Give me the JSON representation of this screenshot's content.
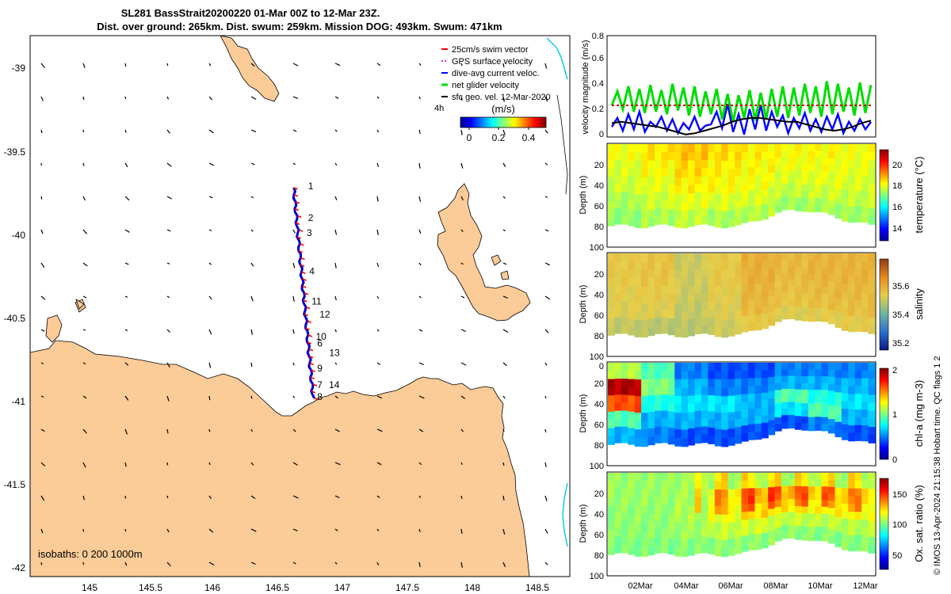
{
  "header": {
    "title_line1": "SL281 BassStrait20200220 01-Mar 00Z to 12-Mar 23Z.",
    "title_line2": "Dist. over ground: 265km. Dist. swum: 259km. Mission DOG: 493km. Swum: 471km"
  },
  "map": {
    "legend": [
      {
        "label": "25cm/s swim vector",
        "color": "#ff0000"
      },
      {
        "label": "GPS surface velocity",
        "color": "#cc33cc"
      },
      {
        "label": "dive-avg current veloc.",
        "color": "#0000ff"
      },
      {
        "label": "net glider velocity",
        "color": "#00dd00"
      },
      {
        "label": "sfc geo. vel. 12-Mar-2020",
        "color": "#000000"
      }
    ],
    "legend_note": "4h",
    "colorbar_unit": "(m/s)",
    "colorbar_ticks": [
      "0",
      "0.2",
      "0.4"
    ],
    "colorbar_range": [
      0,
      0.5
    ],
    "x_ticks": [
      "145",
      "145.5",
      "146",
      "146.5",
      "147",
      "147.5",
      "148",
      "148.5"
    ],
    "y_ticks": [
      "-39",
      "-39.5",
      "-40",
      "-40.5",
      "-41",
      "-41.5",
      "-42"
    ],
    "isobaths_label": "isobaths: 0   200  1000m",
    "land_color": "#fbcb98",
    "track_color": "#0000cc",
    "track_label_color": "#ff0000",
    "waypoints": [
      {
        "label": "1",
        "lon": 146.62,
        "lat": -39.73
      },
      {
        "label": "2",
        "lon": 146.62,
        "lat": -39.92
      },
      {
        "label": "3",
        "lon": 146.61,
        "lat": -40.01
      },
      {
        "label": "4",
        "lon": 146.63,
        "lat": -40.24
      },
      {
        "label": "11",
        "lon": 146.66,
        "lat": -40.42
      },
      {
        "label": "12",
        "lon": 146.66,
        "lat": -40.46
      },
      {
        "label": "10",
        "lon": 146.68,
        "lat": -40.63
      },
      {
        "label": "6",
        "lon": 146.69,
        "lat": -40.67
      },
      {
        "label": "13",
        "lon": 146.71,
        "lat": -40.69
      },
      {
        "label": "9",
        "lon": 146.69,
        "lat": -40.82
      },
      {
        "label": "7",
        "lon": 146.69,
        "lat": -40.92
      },
      {
        "label": "14",
        "lon": 146.72,
        "lat": -40.92
      },
      {
        "label": "8",
        "lon": 146.69,
        "lat": -40.99
      }
    ]
  },
  "chart_data": [
    {
      "type": "line",
      "title": "",
      "ylabel": "velocity magnitude (m/s)",
      "ylim": [
        0,
        0.8
      ],
      "y_ticks": [
        "0",
        "0.2",
        "0.4",
        "0.6",
        "0.8"
      ],
      "series": [
        {
          "name": "net glider velocity",
          "color": "#00dd00",
          "values": [
            0.25,
            0.36,
            0.22,
            0.4,
            0.2,
            0.38,
            0.19,
            0.41,
            0.2,
            0.37,
            0.18,
            0.42,
            0.21,
            0.39,
            0.17,
            0.4,
            0.16,
            0.36,
            0.18,
            0.38,
            0.14,
            0.34,
            0.12,
            0.33,
            0.15,
            0.37,
            0.13,
            0.35,
            0.14,
            0.38,
            0.16,
            0.4,
            0.15,
            0.39,
            0.17,
            0.42,
            0.19,
            0.4,
            0.16,
            0.44,
            0.18,
            0.42,
            0.2,
            0.39,
            0.17,
            0.43,
            0.19,
            0.41
          ]
        },
        {
          "name": "dive-avg current veloc.",
          "color": "#0000ff",
          "values": [
            0.08,
            0.15,
            0.05,
            0.18,
            0.06,
            0.2,
            0.04,
            0.12,
            0.08,
            0.16,
            0.05,
            0.14,
            0.03,
            0.11,
            0.06,
            0.16,
            0.05,
            0.09,
            0.1,
            0.2,
            0.07,
            0.26,
            0.04,
            0.18,
            0.02,
            0.22,
            0.06,
            0.25,
            0.05,
            0.2,
            0.08,
            0.17,
            0.03,
            0.15,
            0.07,
            0.19,
            0.05,
            0.14,
            0.04,
            0.16,
            0.06,
            0.18,
            0.03,
            0.12,
            0.05,
            0.14,
            0.06,
            0.12
          ]
        },
        {
          "name": "sfc geo. vel.",
          "color": "#000000",
          "values": [
            0.11,
            0.12,
            0.11,
            0.1,
            0.09,
            0.08,
            0.06,
            0.04,
            0.02,
            0.03,
            0.05,
            0.07,
            0.09,
            0.12,
            0.14,
            0.15,
            0.15,
            0.14,
            0.13,
            0.12,
            0.12,
            0.1,
            0.08,
            0.06,
            0.05,
            0.06,
            0.08,
            0.11,
            0.13
          ]
        },
        {
          "name": "25cm/s reference",
          "color": "#cc0000",
          "values": [
            0.25,
            0.25
          ]
        }
      ]
    },
    {
      "type": "heatmap",
      "variable": "temperature",
      "ylabel": "Depth (m)",
      "colorbar_label": "temperature (°C)",
      "colorbar_ticks": [
        "14",
        "16",
        "18",
        "20"
      ],
      "colorbar_range": [
        13,
        21.5
      ],
      "ylim": [
        0,
        100
      ],
      "y_ticks": [
        "20",
        "40",
        "60",
        "80",
        "100"
      ],
      "values": [
        [
          18.2,
          18.0,
          17.9,
          17.6,
          17.4
        ],
        [
          18.5,
          18.3,
          18.1,
          17.9,
          17.6
        ],
        [
          18.8,
          18.6,
          18.4,
          18.1,
          17.8
        ],
        [
          18.6,
          18.4,
          18.3,
          18.0,
          17.6
        ],
        [
          18.4,
          18.3,
          18.2,
          18.0,
          17.7
        ],
        [
          18.3,
          18.2,
          18.0,
          17.8,
          17.5
        ],
        [
          18.3,
          18.2,
          18.1,
          17.9,
          17.6
        ],
        [
          18.2,
          18.1,
          18.0,
          17.8,
          17.5
        ]
      ]
    },
    {
      "type": "heatmap",
      "variable": "salinity",
      "ylabel": "Depth (m)",
      "colorbar_label": "salinity",
      "colorbar_ticks": [
        "35.2",
        "35.4",
        "35.6"
      ],
      "colorbar_range": [
        35.1,
        35.75
      ],
      "ylim": [
        0,
        100
      ],
      "y_ticks": [
        "20",
        "40",
        "60",
        "80",
        "100"
      ],
      "values": [
        [
          35.5,
          35.5,
          35.49,
          35.48,
          35.45
        ],
        [
          35.51,
          35.51,
          35.5,
          35.48,
          35.44
        ],
        [
          35.46,
          35.46,
          35.46,
          35.45,
          35.44
        ],
        [
          35.5,
          35.5,
          35.49,
          35.48,
          35.46
        ],
        [
          35.55,
          35.55,
          35.54,
          35.53,
          35.5
        ],
        [
          35.53,
          35.53,
          35.52,
          35.51,
          35.48
        ],
        [
          35.54,
          35.54,
          35.53,
          35.52,
          35.49
        ],
        [
          35.54,
          35.54,
          35.53,
          35.52,
          35.49
        ]
      ]
    },
    {
      "type": "heatmap",
      "variable": "chl-a",
      "ylabel": "Depth (m)",
      "colorbar_label": "chl-a (mg m-3)",
      "colorbar_ticks": [
        "0",
        "1",
        "2"
      ],
      "colorbar_range": [
        0,
        2
      ],
      "ylim": [
        0,
        100
      ],
      "y_ticks": [
        "0",
        "20",
        "40",
        "60",
        "80",
        "100"
      ],
      "values": [
        [
          1.1,
          1.9,
          1.6,
          0.9,
          0.6
        ],
        [
          0.9,
          1.0,
          0.8,
          0.6,
          0.5
        ],
        [
          0.5,
          0.6,
          0.7,
          0.6,
          0.4
        ],
        [
          0.4,
          0.5,
          0.7,
          0.6,
          0.4
        ],
        [
          0.4,
          0.5,
          0.6,
          0.6,
          0.4
        ],
        [
          0.5,
          0.6,
          0.9,
          0.7,
          0.4
        ],
        [
          0.5,
          0.6,
          0.8,
          0.9,
          0.5
        ],
        [
          0.5,
          0.6,
          0.7,
          0.6,
          0.4
        ]
      ]
    },
    {
      "type": "heatmap",
      "variable": "oxygen saturation",
      "ylabel": "Depth (m)",
      "colorbar_label": "Ox. sat. ratio (%)",
      "colorbar_ticks": [
        "50",
        "100",
        "150"
      ],
      "colorbar_range": [
        25,
        175
      ],
      "ylim": [
        0,
        100
      ],
      "y_ticks": [
        "20",
        "40",
        "60",
        "80",
        "100"
      ],
      "values": [
        [
          104,
          104,
          103,
          102,
          100
        ],
        [
          104,
          104,
          103,
          102,
          100
        ],
        [
          105,
          106,
          107,
          105,
          101
        ],
        [
          106,
          118,
          116,
          110,
          102
        ],
        [
          106,
          130,
          124,
          112,
          102
        ],
        [
          106,
          128,
          122,
          110,
          102
        ],
        [
          106,
          125,
          120,
          109,
          101
        ],
        [
          106,
          122,
          118,
          108,
          101
        ]
      ]
    }
  ],
  "time_axis": {
    "ticks": [
      "02Mar",
      "04Mar",
      "06Mar",
      "08Mar",
      "10Mar",
      "12Mar"
    ]
  },
  "footer": "© IMOS 13-Apr-2024 21:15:38 Hobart time. QC flags 1  2"
}
